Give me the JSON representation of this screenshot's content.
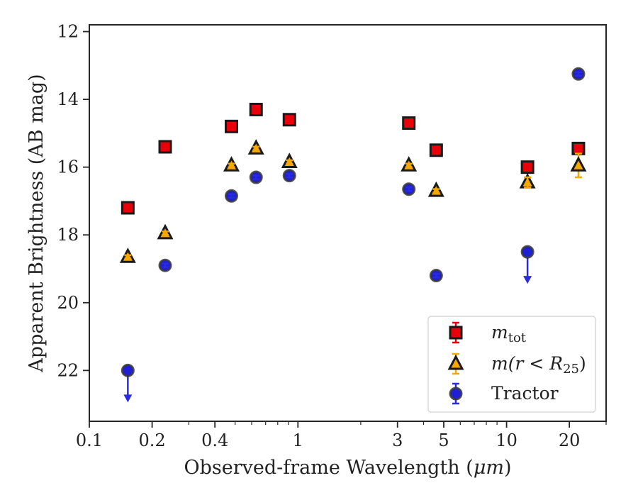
{
  "chart_data": {
    "type": "scatter",
    "xlabel_prefix": "Observed-frame Wavelength (",
    "xlabel_unit": "μm",
    "xlabel_suffix": ")",
    "ylabel": "Apparent Brightness (AB mag)",
    "xscale": "log",
    "xlim": [
      0.1,
      30
    ],
    "ylim": [
      23.5,
      11.8
    ],
    "y_inverted": true,
    "grid": false,
    "legend_position": "lower-right",
    "xticks": [
      {
        "value": 0.1,
        "label": "0.1"
      },
      {
        "value": 0.2,
        "label": "0.2"
      },
      {
        "value": 0.4,
        "label": "0.4"
      },
      {
        "value": 1,
        "label": "1"
      },
      {
        "value": 3,
        "label": "3"
      },
      {
        "value": 5,
        "label": "5"
      },
      {
        "value": 10,
        "label": "10"
      },
      {
        "value": 20,
        "label": "20"
      }
    ],
    "yticks": [
      {
        "value": 12,
        "label": "12"
      },
      {
        "value": 14,
        "label": "14"
      },
      {
        "value": 16,
        "label": "16"
      },
      {
        "value": 18,
        "label": "18"
      },
      {
        "value": 20,
        "label": "20"
      },
      {
        "value": 22,
        "label": "22"
      }
    ],
    "series": [
      {
        "key": "mtot",
        "legend_main": "m",
        "legend_sub": "tot",
        "marker": "square",
        "color": "#e8000b",
        "edgecolor": "#1a1a1a",
        "errcolor": "#e8000b",
        "points": [
          {
            "x": 0.153,
            "y": 17.2,
            "err": 0.05
          },
          {
            "x": 0.231,
            "y": 15.4,
            "err": 0.05
          },
          {
            "x": 0.48,
            "y": 14.8,
            "err": 0.05
          },
          {
            "x": 0.63,
            "y": 14.3,
            "err": 0.05
          },
          {
            "x": 0.91,
            "y": 14.6,
            "err": 0.05
          },
          {
            "x": 3.4,
            "y": 14.7,
            "err": 0.05
          },
          {
            "x": 4.6,
            "y": 15.5,
            "err": 0.05
          },
          {
            "x": 12.6,
            "y": 16.0,
            "err": 0.05
          },
          {
            "x": 22.1,
            "y": 15.45,
            "err": 0.08
          }
        ]
      },
      {
        "key": "mr25",
        "legend_main": "m",
        "legend_math": "(r < R",
        "legend_sub": "25",
        "legend_close": ")",
        "marker": "triangle",
        "color": "#f6a800",
        "edgecolor": "#1a1a1a",
        "errcolor": "#f6a800",
        "points": [
          {
            "x": 0.153,
            "y": 18.65,
            "err": 0.05
          },
          {
            "x": 0.231,
            "y": 17.95,
            "err": 0.05
          },
          {
            "x": 0.48,
            "y": 15.95,
            "err": 0.05
          },
          {
            "x": 0.63,
            "y": 15.45,
            "err": 0.05
          },
          {
            "x": 0.91,
            "y": 15.85,
            "err": 0.05
          },
          {
            "x": 3.4,
            "y": 15.95,
            "err": 0.05
          },
          {
            "x": 4.6,
            "y": 16.7,
            "err": 0.05
          },
          {
            "x": 12.6,
            "y": 16.45,
            "err": 0.15
          },
          {
            "x": 22.1,
            "y": 15.95,
            "err": 0.35
          }
        ]
      },
      {
        "key": "tractor",
        "legend_main": "Tractor",
        "marker": "circle",
        "color": "#1f1fd6",
        "edgecolor": "#3a3a3a",
        "errcolor": "#2a2ae0",
        "points": [
          {
            "x": 0.153,
            "y": 22.0,
            "err": 0.0,
            "upper_limit": true
          },
          {
            "x": 0.231,
            "y": 18.9,
            "err": 0.05
          },
          {
            "x": 0.48,
            "y": 16.85,
            "err": 0.05
          },
          {
            "x": 0.63,
            "y": 16.3,
            "err": 0.05
          },
          {
            "x": 0.91,
            "y": 16.25,
            "err": 0.05
          },
          {
            "x": 3.4,
            "y": 16.65,
            "err": 0.05
          },
          {
            "x": 4.6,
            "y": 19.2,
            "err": 0.05
          },
          {
            "x": 12.6,
            "y": 18.5,
            "err": 0.0,
            "upper_limit": true
          },
          {
            "x": 22.1,
            "y": 13.25,
            "err": 0.05
          }
        ]
      }
    ]
  }
}
